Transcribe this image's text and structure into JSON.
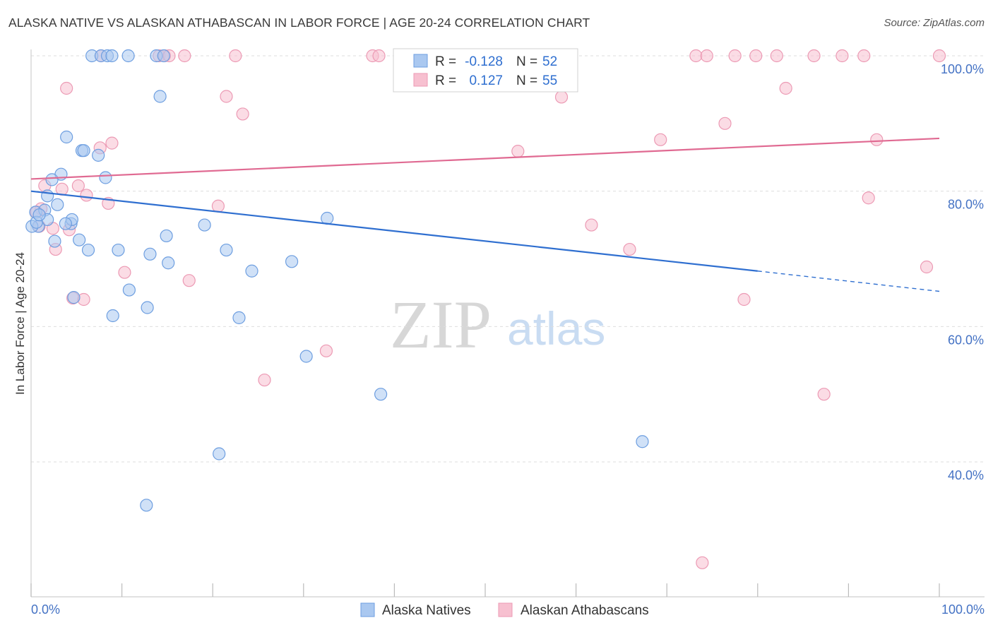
{
  "title": "ALASKA NATIVE VS ALASKAN ATHABASCAN IN LABOR FORCE | AGE 20-24 CORRELATION CHART",
  "source": "Source: ZipAtlas.com",
  "watermark": {
    "zip": "ZIP",
    "atlas": "atlas"
  },
  "colors": {
    "blue_fill": "#aac8f0",
    "blue_stroke": "#6d9ee0",
    "blue_line": "#2f6fd0",
    "pink_fill": "#f7c0d0",
    "pink_stroke": "#ec9ab4",
    "pink_line": "#e06a92",
    "tick_text": "#4472c4",
    "grid": "#dddddd"
  },
  "legend_box": {
    "rows": [
      {
        "r_label": "R =",
        "r_value": "-0.128",
        "n_label": "N =",
        "n_value": "52"
      },
      {
        "r_label": "R =",
        "r_value": "0.127",
        "n_label": "N =",
        "n_value": "55"
      }
    ]
  },
  "chart_data": {
    "type": "scatter",
    "title": "ALASKA NATIVE VS ALASKAN ATHABASCAN IN LABOR FORCE | AGE 20-24 CORRELATION CHART",
    "xlabel": "",
    "ylabel": "In Labor Force | Age 20-24",
    "xlim": [
      0,
      100
    ],
    "ylim": [
      19,
      102
    ],
    "x_tick_labels": [
      "0.0%",
      "100.0%"
    ],
    "y_ticks": [
      {
        "value": 100,
        "label": "100.0%"
      },
      {
        "value": 80,
        "label": "80.0%"
      },
      {
        "value": 60,
        "label": "60.0%"
      },
      {
        "value": 40,
        "label": "40.0%"
      }
    ],
    "grid": true,
    "legend_position": "bottom",
    "series": [
      {
        "name": "Alaska Natives",
        "color": "#aac8f0",
        "r": -0.128,
        "n": 52,
        "trend": {
          "x0": 0,
          "y0": 80.0,
          "x1": 80,
          "y1": 68.2,
          "dash_to_x": 100,
          "dash_to_y": 65.2
        },
        "points": [
          [
            6.7,
            100
          ],
          [
            7.7,
            100
          ],
          [
            8.4,
            100
          ],
          [
            8.9,
            100
          ],
          [
            10.7,
            100
          ],
          [
            13.8,
            100
          ],
          [
            14.6,
            100
          ],
          [
            44.8,
            100
          ],
          [
            46.2,
            100
          ],
          [
            51.4,
            100
          ],
          [
            14.2,
            94
          ],
          [
            3.9,
            88
          ],
          [
            5.6,
            86
          ],
          [
            5.8,
            86
          ],
          [
            7.4,
            85.3
          ],
          [
            3.3,
            82.5
          ],
          [
            8.2,
            82
          ],
          [
            2.3,
            81.7
          ],
          [
            1.8,
            79.3
          ],
          [
            2.9,
            78
          ],
          [
            0.5,
            76.9
          ],
          [
            1.5,
            77.2
          ],
          [
            1.8,
            75.8
          ],
          [
            0.8,
            74.8
          ],
          [
            4.4,
            75.2
          ],
          [
            4.5,
            75.8
          ],
          [
            3.8,
            75.2
          ],
          [
            19.1,
            75
          ],
          [
            32.6,
            76
          ],
          [
            14.9,
            73.4
          ],
          [
            2.6,
            72.6
          ],
          [
            5.3,
            72.8
          ],
          [
            6.3,
            71.3
          ],
          [
            9.6,
            71.3
          ],
          [
            21.5,
            71.3
          ],
          [
            13.1,
            70.7
          ],
          [
            15.1,
            69.4
          ],
          [
            28.7,
            69.6
          ],
          [
            24.3,
            68.2
          ],
          [
            10.8,
            65.4
          ],
          [
            4.7,
            64.3
          ],
          [
            12.8,
            62.8
          ],
          [
            9.0,
            61.6
          ],
          [
            22.9,
            61.3
          ],
          [
            30.3,
            55.6
          ],
          [
            38.5,
            50
          ],
          [
            0.1,
            74.8
          ],
          [
            20.7,
            41.2
          ],
          [
            67.3,
            43
          ],
          [
            12.7,
            33.6
          ],
          [
            0.6,
            75.4
          ],
          [
            0.9,
            76.5
          ]
        ]
      },
      {
        "name": "Alaskan Athabascans",
        "color": "#f7c0d0",
        "r": 0.127,
        "n": 55,
        "trend": {
          "x0": 0,
          "y0": 81.8,
          "x1": 100,
          "y1": 87.8
        },
        "points": [
          [
            7.7,
            100
          ],
          [
            14.1,
            100
          ],
          [
            14.7,
            100
          ],
          [
            15.2,
            100
          ],
          [
            16.9,
            100
          ],
          [
            22.5,
            100
          ],
          [
            37.6,
            100
          ],
          [
            38.3,
            100
          ],
          [
            40.6,
            100
          ],
          [
            51.2,
            100
          ],
          [
            73.2,
            100
          ],
          [
            74.4,
            100
          ],
          [
            77.5,
            100
          ],
          [
            79.8,
            100
          ],
          [
            82.1,
            100
          ],
          [
            86.2,
            100
          ],
          [
            89.3,
            100
          ],
          [
            91.7,
            100
          ],
          [
            100,
            100
          ],
          [
            3.9,
            95.2
          ],
          [
            21.5,
            94
          ],
          [
            23.3,
            91.4
          ],
          [
            58.4,
            93.9
          ],
          [
            83.1,
            95.2
          ],
          [
            76.4,
            90
          ],
          [
            7.6,
            86.4
          ],
          [
            8.9,
            87.1
          ],
          [
            53.6,
            85.9
          ],
          [
            69.3,
            87.6
          ],
          [
            93.1,
            87.6
          ],
          [
            1.5,
            80.8
          ],
          [
            3.4,
            80.3
          ],
          [
            5.2,
            80.8
          ],
          [
            6.1,
            79.4
          ],
          [
            1.1,
            77.4
          ],
          [
            0.6,
            76.9
          ],
          [
            8.5,
            78.2
          ],
          [
            20.6,
            77.8
          ],
          [
            2.4,
            74.5
          ],
          [
            4.2,
            74.3
          ],
          [
            0.9,
            74.8
          ],
          [
            61.7,
            75
          ],
          [
            2.7,
            71.4
          ],
          [
            65.9,
            71.4
          ],
          [
            92.2,
            79
          ],
          [
            10.3,
            68
          ],
          [
            17.4,
            66.8
          ],
          [
            4.6,
            64.2
          ],
          [
            5.8,
            64
          ],
          [
            78.5,
            64
          ],
          [
            32.5,
            56.4
          ],
          [
            25.7,
            52.1
          ],
          [
            87.3,
            50
          ],
          [
            98.6,
            68.8
          ],
          [
            73.9,
            25.1
          ]
        ]
      }
    ]
  }
}
